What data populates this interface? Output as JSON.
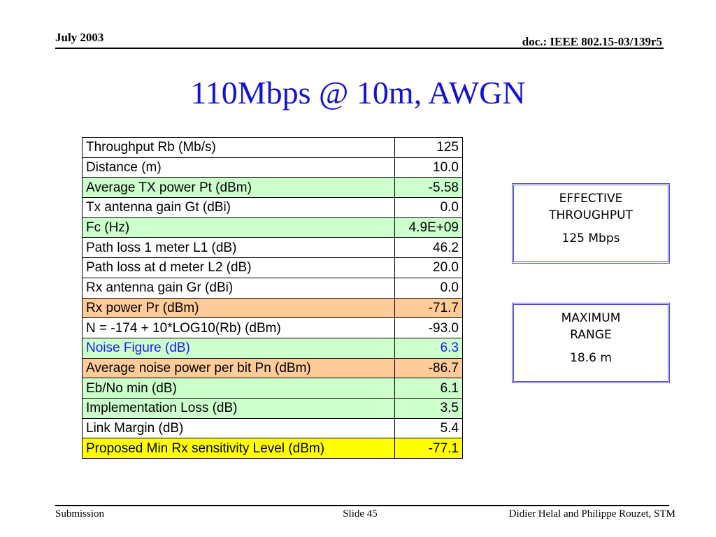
{
  "header": {
    "date": "July 2003",
    "doc_id": "doc.: IEEE 802.15-03/139r5"
  },
  "title": "110Mbps @ 10m, AWGN",
  "table": {
    "rows": [
      {
        "label": "Throughput Rb (Mb/s)",
        "value": "125",
        "color": "white"
      },
      {
        "label": "Distance (m)",
        "value": "10.0",
        "color": "white"
      },
      {
        "label": "Average TX power Pt (dBm)",
        "value": "-5.58",
        "color": "#ccffcc"
      },
      {
        "label": "Tx antenna gain Gt (dBi)",
        "value": "0.0",
        "color": "white"
      },
      {
        "label": "Fc (Hz)",
        "value": "4.9E+09",
        "color": "#ccffcc"
      },
      {
        "label": "Path loss 1 meter L1 (dB)",
        "value": "46.2",
        "color": "white"
      },
      {
        "label": "Path loss at d meter L2 (dB)",
        "value": "20.0",
        "color": "white"
      },
      {
        "label": "Rx antenna gain Gr (dBi)",
        "value": "0.0",
        "color": "white"
      },
      {
        "label": "Rx power Pr (dBm)",
        "value": "-71.7",
        "color": "#ffcc99"
      },
      {
        "label": "N = -174 + 10*LOG10(Rb) (dBm)",
        "value": "-93.0",
        "color": "white"
      },
      {
        "label": "Noise Figure (dB)",
        "value": "6.3",
        "color": "#ccffcc",
        "text_color": "#1a1aff"
      },
      {
        "label": "Average noise power per bit Pn (dBm)",
        "value": "-86.7",
        "color": "#ffcc99"
      },
      {
        "label": "Eb/No min (dB)",
        "value": "6.1",
        "color": "#ccffcc"
      },
      {
        "label": "Implementation Loss (dB)",
        "value": "3.5",
        "color": "#ccffcc"
      },
      {
        "label": "Link Margin (dB)",
        "value": "5.4",
        "color": "white"
      },
      {
        "label": "Proposed Min Rx sensitivity Level (dBm)",
        "value": "-77.1",
        "color": "#ffff00"
      }
    ]
  },
  "boxes": {
    "throughput": {
      "line1": "EFFECTIVE",
      "line2": "THROUGHPUT",
      "value": "125 Mbps"
    },
    "range": {
      "line1": "MAXIMUM",
      "line2": "RANGE",
      "value": "18.6 m"
    }
  },
  "footer": {
    "left": "Submission",
    "center": "Slide 45",
    "right": "Didier Helal and Philippe Rouzet, STM"
  },
  "colors": {
    "title": "#1212d8",
    "green_row": "#ccffcc",
    "orange_row": "#ffcc99",
    "yellow_row": "#ffff00",
    "box_border": "#4a4ad8"
  }
}
